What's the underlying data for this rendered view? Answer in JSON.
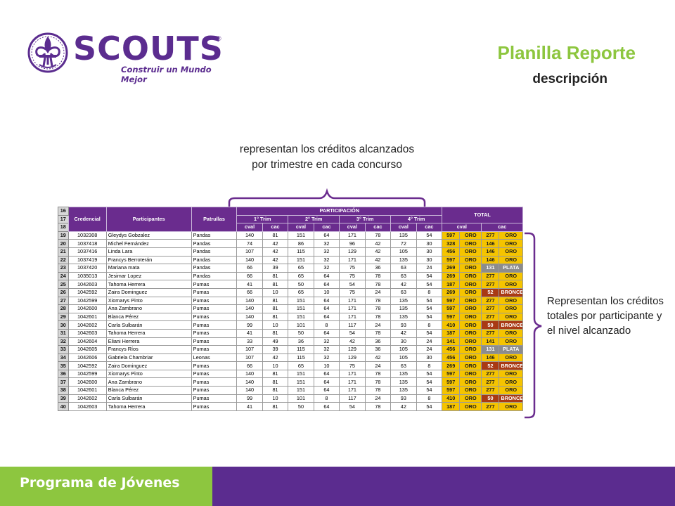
{
  "logo": {
    "word": "SCOUTS",
    "registered": "®",
    "tagline": "Construir un Mundo Mejor"
  },
  "title": "Planilla Reporte",
  "subtitle": "descripción",
  "notes": {
    "top": "representan los créditos alcanzados por trimestre en cada concurso",
    "right": "Representan los créditos totales por participante y el nivel alcanzado"
  },
  "sheet": {
    "header_row_numbers": [
      "16",
      "17",
      "18"
    ],
    "columns": {
      "credencial": "Credencial",
      "participantes": "Participantes",
      "patrullas": "Patrullas"
    },
    "participacion": "PARTICIPACIÓN",
    "total": "TOTAL",
    "trims": [
      "1° Trim",
      "2° Trim",
      "3° Trim",
      "4° Trim"
    ],
    "sub": {
      "cval": "cval",
      "cac": "cac"
    },
    "rows": [
      {
        "n": "19",
        "cred": "1032308",
        "name": "Gleydys Gobzalez",
        "pat": "Pandas",
        "v": [
          "140",
          "81",
          "151",
          "64",
          "171",
          "78",
          "135",
          "54"
        ],
        "tval": "597",
        "lval": "ORO",
        "tcac": "277",
        "lcac": "ORO"
      },
      {
        "n": "20",
        "cred": "1037418",
        "name": "Michel Fernández",
        "pat": "Pandas",
        "v": [
          "74",
          "42",
          "86",
          "32",
          "96",
          "42",
          "72",
          "30"
        ],
        "tval": "328",
        "lval": "ORO",
        "tcac": "146",
        "lcac": "ORO"
      },
      {
        "n": "21",
        "cred": "1037416",
        "name": "Linda Lara",
        "pat": "Pandas",
        "v": [
          "107",
          "42",
          "115",
          "32",
          "129",
          "42",
          "105",
          "30"
        ],
        "tval": "456",
        "lval": "ORO",
        "tcac": "146",
        "lcac": "ORO"
      },
      {
        "n": "22",
        "cred": "1037419",
        "name": "Francys Berroterán",
        "pat": "Pandas",
        "v": [
          "140",
          "42",
          "151",
          "32",
          "171",
          "42",
          "135",
          "30"
        ],
        "tval": "597",
        "lval": "ORO",
        "tcac": "146",
        "lcac": "ORO"
      },
      {
        "n": "23",
        "cred": "1037420",
        "name": "Mariana mata",
        "pat": "Pandas",
        "v": [
          "66",
          "39",
          "65",
          "32",
          "75",
          "36",
          "63",
          "24"
        ],
        "tval": "269",
        "lval": "ORO",
        "tcac": "131",
        "lcac": "PLATA"
      },
      {
        "n": "24",
        "cred": "1035013",
        "name": "Jesimar Lopez",
        "pat": "Pandas",
        "v": [
          "66",
          "81",
          "65",
          "64",
          "75",
          "78",
          "63",
          "54"
        ],
        "tval": "269",
        "lval": "ORO",
        "tcac": "277",
        "lcac": "ORO"
      },
      {
        "n": "25",
        "cred": "1042603",
        "name": "Tahoma Herrera",
        "pat": "Pumas",
        "v": [
          "41",
          "81",
          "50",
          "64",
          "54",
          "78",
          "42",
          "54"
        ],
        "tval": "187",
        "lval": "ORO",
        "tcac": "277",
        "lcac": "ORO"
      },
      {
        "n": "26",
        "cred": "1042592",
        "name": "Zaira Dominguez",
        "pat": "Pumas",
        "v": [
          "66",
          "10",
          "65",
          "10",
          "75",
          "24",
          "63",
          "8"
        ],
        "tval": "269",
        "lval": "ORO",
        "tcac": "52",
        "lcac": "BRONCE"
      },
      {
        "n": "27",
        "cred": "1042599",
        "name": "Xiomarys Pinto",
        "pat": "Pumas",
        "v": [
          "140",
          "81",
          "151",
          "64",
          "171",
          "78",
          "135",
          "54"
        ],
        "tval": "597",
        "lval": "ORO",
        "tcac": "277",
        "lcac": "ORO"
      },
      {
        "n": "28",
        "cred": "1042600",
        "name": "Ana Zambrano",
        "pat": "Pumas",
        "v": [
          "140",
          "81",
          "151",
          "64",
          "171",
          "78",
          "135",
          "54"
        ],
        "tval": "597",
        "lval": "ORO",
        "tcac": "277",
        "lcac": "ORO"
      },
      {
        "n": "29",
        "cred": "1042601",
        "name": "Blanca Pérez",
        "pat": "Pumas",
        "v": [
          "140",
          "81",
          "151",
          "64",
          "171",
          "78",
          "135",
          "54"
        ],
        "tval": "597",
        "lval": "ORO",
        "tcac": "277",
        "lcac": "ORO"
      },
      {
        "n": "30",
        "cred": "1042602",
        "name": "Carla Sulbarán",
        "pat": "Pumas",
        "v": [
          "99",
          "10",
          "101",
          "8",
          "117",
          "24",
          "93",
          "8"
        ],
        "tval": "410",
        "lval": "ORO",
        "tcac": "50",
        "lcac": "BRONCE"
      },
      {
        "n": "31",
        "cred": "1042603",
        "name": "Tahoma Herrera",
        "pat": "Pumas",
        "v": [
          "41",
          "81",
          "50",
          "64",
          "54",
          "78",
          "42",
          "54"
        ],
        "tval": "187",
        "lval": "ORO",
        "tcac": "277",
        "lcac": "ORO"
      },
      {
        "n": "32",
        "cred": "1042604",
        "name": "Eliani Herrera",
        "pat": "Pumas",
        "v": [
          "33",
          "49",
          "36",
          "32",
          "42",
          "36",
          "30",
          "24"
        ],
        "tval": "141",
        "lval": "ORO",
        "tcac": "141",
        "lcac": "ORO"
      },
      {
        "n": "33",
        "cred": "1042605",
        "name": "Francys Ríos",
        "pat": "Pumas",
        "v": [
          "107",
          "39",
          "115",
          "32",
          "129",
          "36",
          "105",
          "24"
        ],
        "tval": "456",
        "lval": "ORO",
        "tcac": "131",
        "lcac": "PLATA"
      },
      {
        "n": "34",
        "cred": "1042606",
        "name": "Gabriela Chambriar",
        "pat": "Leonas",
        "v": [
          "107",
          "42",
          "115",
          "32",
          "129",
          "42",
          "105",
          "30"
        ],
        "tval": "456",
        "lval": "ORO",
        "tcac": "146",
        "lcac": "ORO"
      },
      {
        "n": "35",
        "cred": "1042592",
        "name": "Zaira Dominguez",
        "pat": "Pumas",
        "v": [
          "66",
          "10",
          "65",
          "10",
          "75",
          "24",
          "63",
          "8"
        ],
        "tval": "269",
        "lval": "ORO",
        "tcac": "52",
        "lcac": "BRONCE"
      },
      {
        "n": "36",
        "cred": "1042599",
        "name": "Xiomarys Pinto",
        "pat": "Pumas",
        "v": [
          "140",
          "81",
          "151",
          "64",
          "171",
          "78",
          "135",
          "54"
        ],
        "tval": "597",
        "lval": "ORO",
        "tcac": "277",
        "lcac": "ORO"
      },
      {
        "n": "37",
        "cred": "1042600",
        "name": "Ana Zambrano",
        "pat": "Pumas",
        "v": [
          "140",
          "81",
          "151",
          "64",
          "171",
          "78",
          "135",
          "54"
        ],
        "tval": "597",
        "lval": "ORO",
        "tcac": "277",
        "lcac": "ORO"
      },
      {
        "n": "38",
        "cred": "1042601",
        "name": "Blanca Pérez",
        "pat": "Pumas",
        "v": [
          "140",
          "81",
          "151",
          "64",
          "171",
          "78",
          "135",
          "54"
        ],
        "tval": "597",
        "lval": "ORO",
        "tcac": "277",
        "lcac": "ORO"
      },
      {
        "n": "39",
        "cred": "1042602",
        "name": "Carla Sulbarán",
        "pat": "Pumas",
        "v": [
          "99",
          "10",
          "101",
          "8",
          "117",
          "24",
          "93",
          "8"
        ],
        "tval": "410",
        "lval": "ORO",
        "tcac": "50",
        "lcac": "BRONCE"
      },
      {
        "n": "40",
        "cred": "1042603",
        "name": "Tahoma Herrera",
        "pat": "Pumas",
        "v": [
          "41",
          "81",
          "50",
          "64",
          "54",
          "78",
          "42",
          "54"
        ],
        "tval": "187",
        "lval": "ORO",
        "tcac": "277",
        "lcac": "ORO"
      }
    ]
  },
  "footer": {
    "label": "Programa de Jóvenes"
  },
  "colors": {
    "purple": "#5b2c8f",
    "green": "#8dc63f",
    "gold": "#f5c400",
    "silver": "#8c8c8c",
    "bronze": "#a93a14"
  }
}
